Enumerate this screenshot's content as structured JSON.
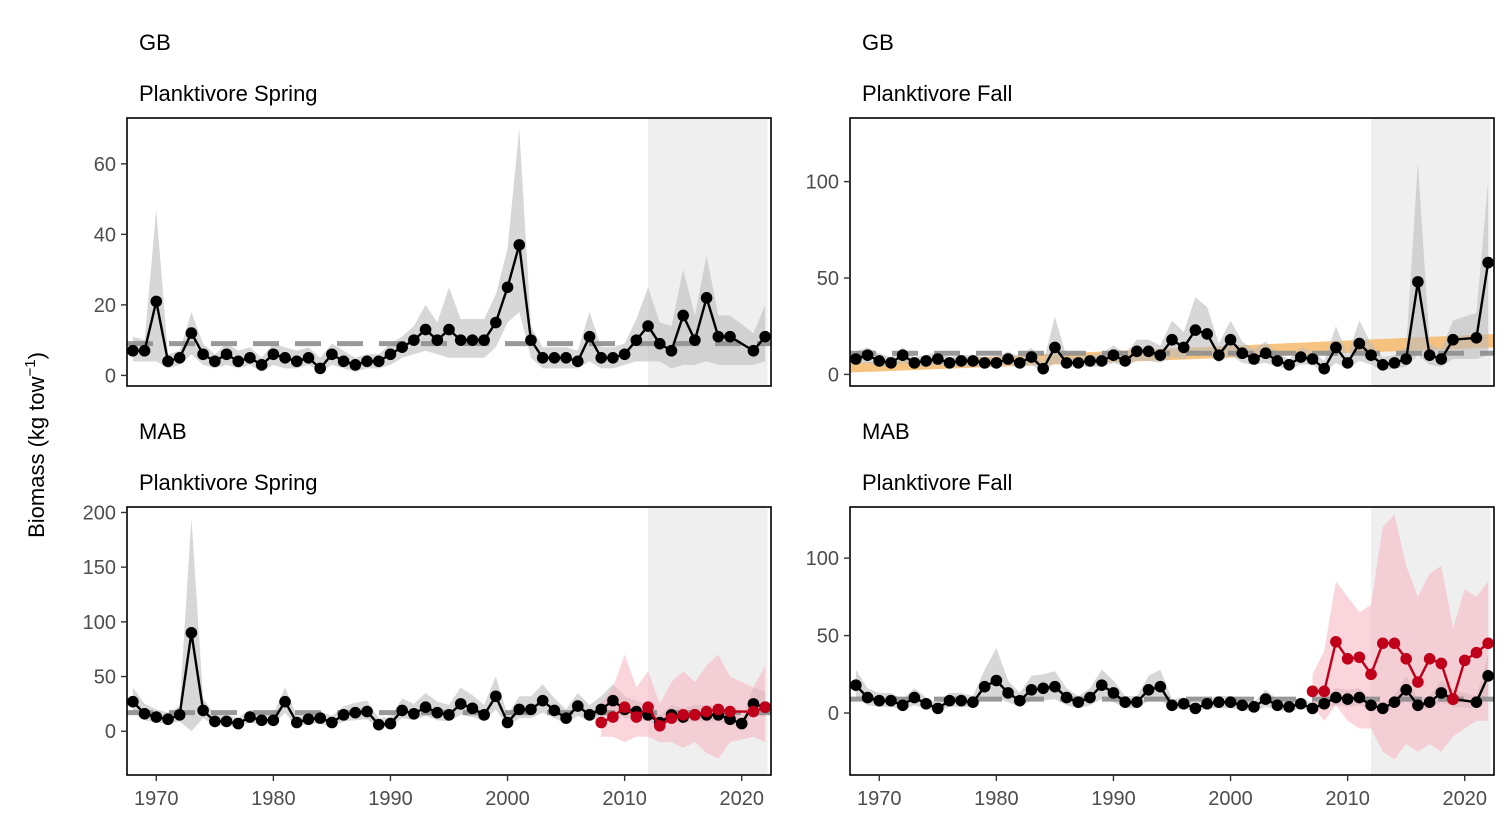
{
  "figure": {
    "ylabel_prefix": "Biomass (kg tow",
    "ylabel_sup": "−1",
    "ylabel_suffix": ")"
  },
  "chart_data": [
    {
      "type": "line",
      "region": "GB",
      "title": "Planktivore Spring",
      "xlim": [
        1967.5,
        2022.5
      ],
      "ylim": [
        -3,
        73
      ],
      "x_ticks": [
        1970,
        1980,
        1990,
        2000,
        2010,
        2020
      ],
      "y_ticks": [
        0,
        20,
        40,
        60
      ],
      "show_x_ticks": false,
      "shade_start": 2012,
      "shade_end": 2022.2,
      "mean_line": 9,
      "series": [
        {
          "color": "#000000",
          "x": [
            1968,
            1969,
            1970,
            1971,
            1972,
            1973,
            1974,
            1975,
            1976,
            1977,
            1978,
            1979,
            1980,
            1981,
            1982,
            1983,
            1984,
            1985,
            1986,
            1987,
            1988,
            1989,
            1990,
            1991,
            1992,
            1993,
            1994,
            1995,
            1996,
            1997,
            1998,
            1999,
            2000,
            2001,
            2002,
            2003,
            2004,
            2005,
            2006,
            2007,
            2008,
            2009,
            2010,
            2011,
            2012,
            2013,
            2014,
            2015,
            2016,
            2017,
            2018,
            2019,
            2021,
            2022
          ],
          "y": [
            7,
            7,
            21,
            4,
            5,
            12,
            6,
            4,
            6,
            4,
            5,
            3,
            6,
            5,
            4,
            5,
            2,
            6,
            4,
            3,
            4,
            4,
            6,
            8,
            10,
            13,
            10,
            13,
            10,
            10,
            10,
            15,
            25,
            37,
            10,
            5,
            5,
            5,
            4,
            11,
            5,
            5,
            6,
            10,
            14,
            9,
            7,
            17,
            10,
            22,
            11,
            11,
            7,
            11
          ],
          "band_upper": [
            11,
            10,
            47,
            6,
            7,
            18,
            9,
            6,
            9,
            7,
            8,
            5,
            9,
            8,
            7,
            8,
            5,
            9,
            7,
            5,
            6,
            6,
            9,
            11,
            14,
            20,
            15,
            25,
            16,
            16,
            16,
            23,
            36,
            70,
            14,
            8,
            8,
            8,
            7,
            18,
            8,
            8,
            9,
            16,
            25,
            15,
            14,
            30,
            17,
            34,
            17,
            17,
            12,
            20
          ],
          "band_lower": [
            4,
            4,
            4,
            2,
            3,
            6,
            3,
            2,
            3,
            2,
            3,
            1,
            3,
            2,
            2,
            3,
            1,
            3,
            2,
            1,
            2,
            2,
            3,
            5,
            6,
            7,
            6,
            5,
            5,
            5,
            5,
            8,
            15,
            18,
            5,
            2,
            2,
            2,
            2,
            4,
            2,
            2,
            3,
            4,
            4,
            4,
            2,
            3,
            3,
            4,
            3,
            3,
            3,
            4
          ]
        }
      ]
    },
    {
      "type": "line",
      "region": "GB",
      "title": "Planktivore Fall",
      "xlim": [
        1967.5,
        2022.5
      ],
      "ylim": [
        -6,
        133
      ],
      "x_ticks": [
        1970,
        1980,
        1990,
        2000,
        2010,
        2020
      ],
      "y_ticks": [
        0,
        50,
        100
      ],
      "show_x_ticks": false,
      "shade_start": 2012,
      "shade_end": 2022.2,
      "mean_line": 11,
      "trend": {
        "color": "#f4b86a",
        "x": [
          1967.5,
          2022.5
        ],
        "y_lower": [
          1,
          14
        ],
        "y_upper": [
          6,
          21
        ]
      },
      "series": [
        {
          "color": "#000000",
          "x": [
            1968,
            1969,
            1970,
            1971,
            1972,
            1973,
            1974,
            1975,
            1976,
            1977,
            1978,
            1979,
            1980,
            1981,
            1982,
            1983,
            1984,
            1985,
            1986,
            1987,
            1988,
            1989,
            1990,
            1991,
            1992,
            1993,
            1994,
            1995,
            1996,
            1997,
            1998,
            1999,
            2000,
            2001,
            2002,
            2003,
            2004,
            2005,
            2006,
            2007,
            2008,
            2009,
            2010,
            2011,
            2012,
            2013,
            2014,
            2015,
            2016,
            2017,
            2018,
            2019,
            2021,
            2022
          ],
          "y": [
            8,
            10,
            7,
            6,
            10,
            6,
            7,
            8,
            6,
            7,
            7,
            6,
            6,
            8,
            6,
            9,
            3,
            14,
            6,
            6,
            7,
            7,
            10,
            7,
            12,
            12,
            10,
            18,
            14,
            23,
            21,
            10,
            18,
            11,
            8,
            11,
            7,
            5,
            9,
            8,
            3,
            14,
            6,
            16,
            10,
            5,
            6,
            8,
            48,
            10,
            8,
            18,
            19,
            58
          ],
          "band_upper": [
            12,
            14,
            11,
            9,
            14,
            9,
            10,
            12,
            9,
            10,
            10,
            9,
            9,
            12,
            9,
            14,
            6,
            30,
            9,
            9,
            10,
            11,
            15,
            11,
            18,
            18,
            15,
            28,
            22,
            40,
            35,
            16,
            28,
            17,
            13,
            17,
            11,
            8,
            14,
            12,
            7,
            25,
            10,
            28,
            16,
            9,
            10,
            14,
            110,
            16,
            13,
            28,
            32,
            100
          ],
          "band_lower": [
            5,
            6,
            4,
            4,
            6,
            4,
            4,
            5,
            4,
            4,
            4,
            4,
            4,
            5,
            4,
            5,
            1,
            6,
            4,
            4,
            4,
            4,
            6,
            4,
            7,
            7,
            6,
            9,
            8,
            12,
            11,
            6,
            10,
            6,
            5,
            6,
            4,
            3,
            5,
            5,
            1,
            6,
            3,
            7,
            5,
            2,
            3,
            4,
            10,
            5,
            4,
            8,
            8,
            10
          ]
        }
      ]
    },
    {
      "type": "line",
      "region": "MAB",
      "title": "Planktivore Spring",
      "xlim": [
        1967.5,
        2022.5
      ],
      "ylim": [
        -40,
        205
      ],
      "x_ticks": [
        1970,
        1980,
        1990,
        2000,
        2010,
        2020
      ],
      "y_ticks": [
        0,
        50,
        100,
        150,
        200
      ],
      "show_x_ticks": true,
      "shade_start": 2012,
      "shade_end": 2022.2,
      "mean_line": 17,
      "series": [
        {
          "color": "#000000",
          "x": [
            1968,
            1969,
            1970,
            1971,
            1972,
            1973,
            1974,
            1975,
            1976,
            1977,
            1978,
            1979,
            1980,
            1981,
            1982,
            1983,
            1984,
            1985,
            1986,
            1987,
            1988,
            1989,
            1990,
            1991,
            1992,
            1993,
            1994,
            1995,
            1996,
            1997,
            1998,
            1999,
            2000,
            2001,
            2002,
            2003,
            2004,
            2005,
            2006,
            2007,
            2008,
            2009,
            2010,
            2011,
            2012,
            2013,
            2014,
            2015,
            2016,
            2017,
            2018,
            2019,
            2020,
            2021,
            2022
          ],
          "y": [
            27,
            16,
            13,
            11,
            15,
            90,
            19,
            9,
            9,
            7,
            13,
            10,
            10,
            27,
            8,
            11,
            12,
            8,
            15,
            17,
            18,
            6,
            7,
            19,
            16,
            22,
            17,
            15,
            25,
            21,
            15,
            32,
            8,
            20,
            20,
            28,
            19,
            12,
            23,
            15,
            20,
            28,
            20,
            18,
            15,
            8,
            15,
            13,
            15,
            15,
            15,
            11,
            7,
            25,
            22
          ],
          "band_upper": [
            40,
            25,
            20,
            17,
            23,
            195,
            30,
            15,
            15,
            12,
            20,
            16,
            16,
            40,
            14,
            17,
            18,
            14,
            23,
            26,
            28,
            12,
            13,
            30,
            25,
            35,
            27,
            24,
            40,
            33,
            24,
            50,
            15,
            32,
            32,
            43,
            30,
            20,
            35,
            24,
            32,
            43,
            32,
            28,
            24,
            14,
            24,
            21,
            24,
            24,
            24,
            18,
            12,
            40,
            36
          ],
          "band_lower": [
            17,
            10,
            8,
            7,
            9,
            0,
            12,
            5,
            5,
            4,
            8,
            6,
            6,
            17,
            4,
            7,
            7,
            4,
            9,
            10,
            11,
            3,
            4,
            12,
            10,
            14,
            10,
            9,
            15,
            13,
            9,
            20,
            4,
            12,
            12,
            17,
            12,
            7,
            14,
            9,
            12,
            17,
            12,
            11,
            9,
            4,
            9,
            8,
            9,
            9,
            9,
            6,
            4,
            15,
            13
          ]
        },
        {
          "color": "#c0001a",
          "x": [
            2008,
            2009,
            2010,
            2011,
            2012,
            2013,
            2014,
            2015,
            2016,
            2017,
            2018,
            2019,
            2021,
            2022
          ],
          "y": [
            8,
            13,
            22,
            13,
            22,
            5,
            12,
            15,
            15,
            18,
            20,
            18,
            18,
            22
          ],
          "band_upper": [
            25,
            40,
            70,
            40,
            55,
            25,
            45,
            55,
            45,
            60,
            70,
            50,
            40,
            60
          ],
          "band_lower": [
            -5,
            -5,
            -10,
            -5,
            -5,
            -10,
            -10,
            -15,
            -10,
            -20,
            -25,
            -10,
            -5,
            -10
          ]
        }
      ]
    },
    {
      "type": "line",
      "region": "MAB",
      "title": "Planktivore Fall",
      "xlim": [
        1967.5,
        2022.5
      ],
      "ylim": [
        -40,
        133
      ],
      "x_ticks": [
        1970,
        1980,
        1990,
        2000,
        2010,
        2020
      ],
      "y_ticks": [
        0,
        50,
        100
      ],
      "show_x_ticks": true,
      "shade_start": 2012,
      "shade_end": 2022.2,
      "mean_line": 9,
      "series": [
        {
          "color": "#000000",
          "x": [
            1968,
            1969,
            1970,
            1971,
            1972,
            1973,
            1974,
            1975,
            1976,
            1977,
            1978,
            1979,
            1980,
            1981,
            1982,
            1983,
            1984,
            1985,
            1986,
            1987,
            1988,
            1989,
            1990,
            1991,
            1992,
            1993,
            1994,
            1995,
            1996,
            1997,
            1998,
            1999,
            2000,
            2001,
            2002,
            2003,
            2004,
            2005,
            2006,
            2007,
            2008,
            2009,
            2010,
            2011,
            2012,
            2013,
            2014,
            2015,
            2016,
            2017,
            2018,
            2019,
            2021,
            2022
          ],
          "y": [
            18,
            10,
            8,
            8,
            5,
            10,
            6,
            3,
            8,
            8,
            7,
            17,
            21,
            13,
            8,
            15,
            16,
            17,
            10,
            7,
            10,
            18,
            13,
            7,
            7,
            15,
            17,
            5,
            6,
            3,
            6,
            7,
            7,
            5,
            4,
            9,
            5,
            4,
            6,
            3,
            6,
            10,
            9,
            10,
            5,
            3,
            7,
            15,
            5,
            7,
            13,
            9,
            7,
            24
          ],
          "band_upper": [
            28,
            16,
            13,
            13,
            9,
            16,
            10,
            6,
            13,
            13,
            11,
            28,
            42,
            21,
            13,
            24,
            25,
            27,
            16,
            11,
            16,
            28,
            21,
            11,
            11,
            24,
            28,
            9,
            10,
            6,
            10,
            11,
            11,
            9,
            7,
            15,
            9,
            7,
            10,
            6,
            10,
            16,
            15,
            16,
            9,
            6,
            11,
            24,
            9,
            11,
            21,
            15,
            11,
            38
          ],
          "band_lower": [
            10,
            5,
            4,
            4,
            2,
            5,
            3,
            1,
            4,
            4,
            4,
            9,
            10,
            7,
            4,
            8,
            8,
            9,
            5,
            3,
            5,
            9,
            7,
            3,
            3,
            8,
            9,
            2,
            3,
            1,
            3,
            3,
            3,
            2,
            1,
            4,
            2,
            1,
            3,
            1,
            3,
            5,
            4,
            5,
            2,
            1,
            3,
            8,
            2,
            3,
            7,
            4,
            3,
            12
          ]
        },
        {
          "color": "#c0001a",
          "x": [
            2007,
            2008,
            2009,
            2010,
            2011,
            2012,
            2013,
            2014,
            2015,
            2016,
            2017,
            2018,
            2019,
            2020,
            2021,
            2022
          ],
          "y": [
            14,
            14,
            46,
            35,
            36,
            25,
            45,
            45,
            35,
            20,
            35,
            32,
            9,
            34,
            39,
            45
          ],
          "band_upper": [
            25,
            40,
            85,
            75,
            65,
            70,
            120,
            128,
            95,
            75,
            90,
            95,
            55,
            80,
            75,
            85
          ],
          "band_lower": [
            5,
            -5,
            5,
            -5,
            -10,
            -10,
            -25,
            -30,
            -20,
            -25,
            -20,
            -25,
            -15,
            -10,
            -5,
            -5
          ]
        }
      ]
    }
  ]
}
